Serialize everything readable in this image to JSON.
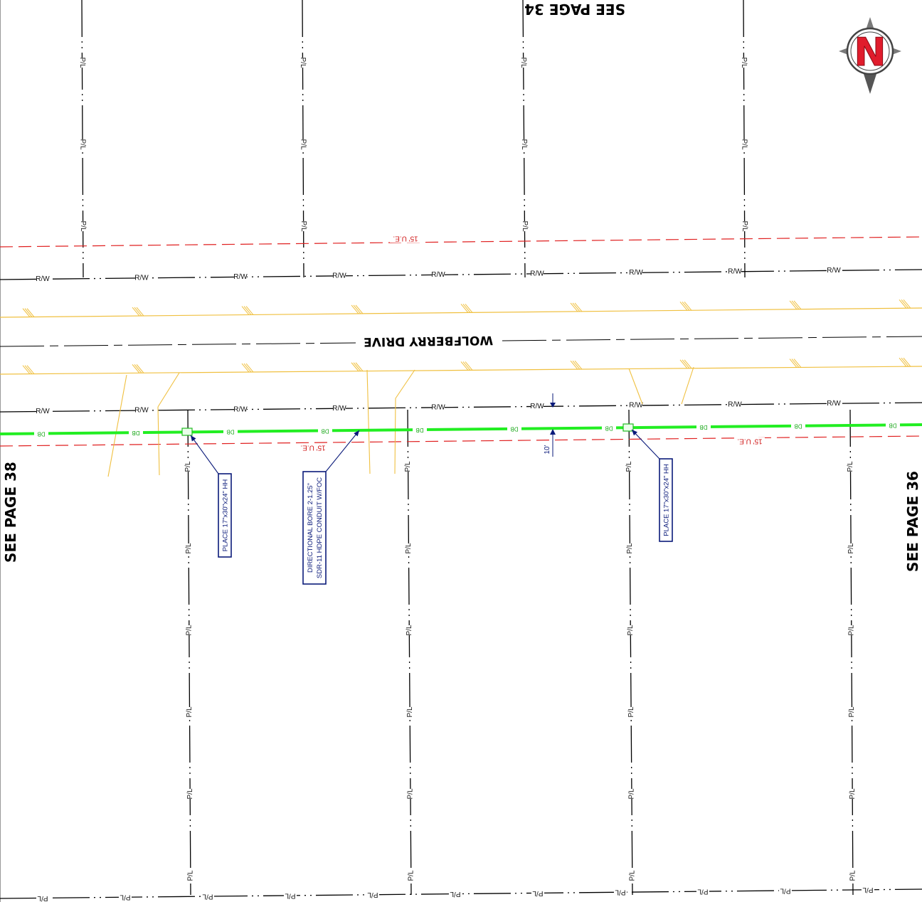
{
  "street_name": "WOLFBERRY DRIVE",
  "see_page_top": "SEE PAGE 34",
  "see_page_left": "SEE PAGE 38",
  "see_page_right": "SEE PAGE 36",
  "labels": {
    "property_line": "P/L",
    "right_of_way": "R/W",
    "utility_easement": "15' U.E.",
    "bore_tag": "DB",
    "dimension": "10'"
  },
  "callouts": [
    {
      "lines": [
        "PLACE 17\"x30\"x24\" HH"
      ]
    },
    {
      "lines": [
        "DIRECTIONAL BORE 2-1.25\"",
        "SDR-11 HDPE CONDUIT W/FOC"
      ]
    },
    {
      "lines": [
        "PLACE 17\"x30\"x24\" HH"
      ]
    }
  ],
  "north_arrow": {
    "letter": "N",
    "icon": "north-arrow-icon"
  },
  "colors": {
    "bore_line": "#22ee22",
    "easement": "#e02020",
    "edge_of_pavement": "#f0c040",
    "callout": "#0a1a7a",
    "linework": "#000000",
    "north_red": "#e01c2c"
  }
}
